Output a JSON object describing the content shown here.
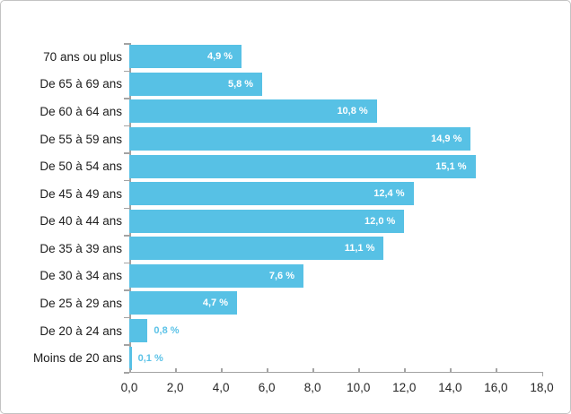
{
  "chart_data": {
    "type": "bar",
    "orientation": "horizontal",
    "title": "",
    "categories": [
      "70 ans ou plus",
      "De 65 à 69 ans",
      "De 60 à 64 ans",
      "De 55 à 59 ans",
      "De 50 à 54 ans",
      "De 45 à 49 ans",
      "De 40 à 44 ans",
      "De 35 à 39 ans",
      "De 30 à 34 ans",
      "De 25 à 29 ans",
      "De 20 à 24 ans",
      "Moins de 20 ans"
    ],
    "values": [
      4.9,
      5.8,
      10.8,
      14.9,
      15.1,
      12.4,
      12.0,
      11.1,
      7.6,
      4.7,
      0.8,
      0.1
    ],
    "value_labels": [
      "4,9 %",
      "5,8 %",
      "10,8 %",
      "14,9 %",
      "15,1 %",
      "12,4 %",
      "12,0 %",
      "11,1 %",
      "7,6 %",
      "4,7 %",
      "0,8 %",
      "0,1 %"
    ],
    "xlabel": "",
    "ylabel": "",
    "xlim": [
      0,
      18
    ],
    "x_tick_step": 2,
    "x_tick_labels": [
      "0,0",
      "2,0",
      "4,0",
      "6,0",
      "8,0",
      "10,0",
      "12,0",
      "14,0",
      "16,0",
      "18,0"
    ],
    "grid": false,
    "legend": false,
    "bar_color": "#57c1e5",
    "value_label_color_inside": "#ffffff",
    "value_label_color_outside": "#5bc2e7",
    "axis_color": "#a3a3a3"
  }
}
